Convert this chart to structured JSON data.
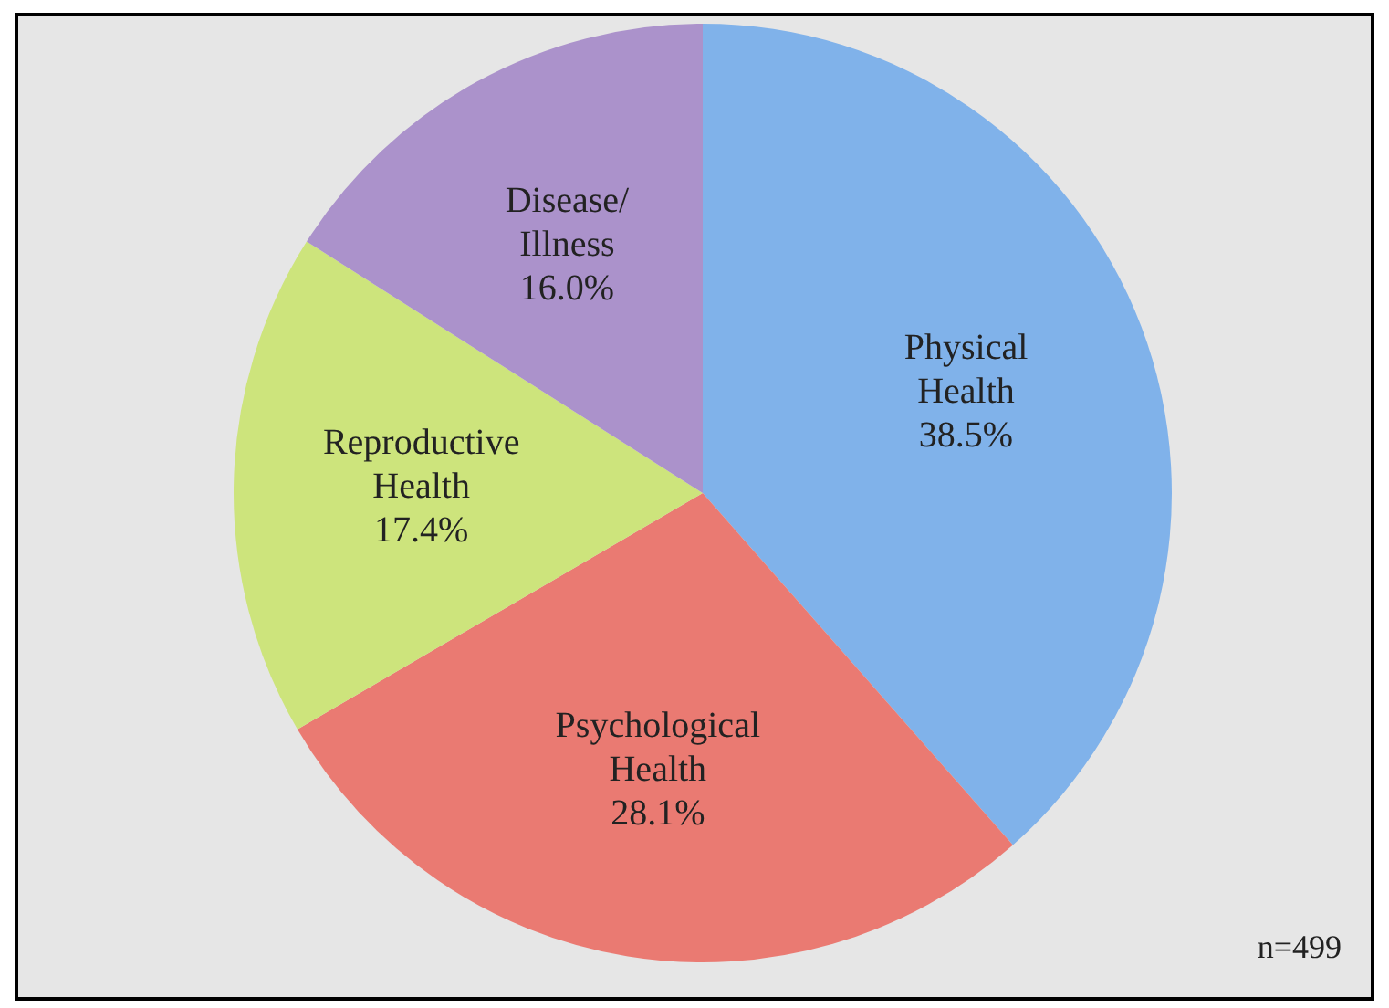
{
  "chart_data": {
    "type": "pie",
    "categories": [
      "Physical Health",
      "Psychological Health",
      "Reproductive Health",
      "Disease/ Illness"
    ],
    "values": [
      38.5,
      28.1,
      17.4,
      16.0
    ],
    "colors": [
      "#80b2ea",
      "#ea7a72",
      "#cde47c",
      "#ab92cb"
    ],
    "value_labels": [
      "38.5%",
      "28.1%",
      "17.4%",
      "16.0%"
    ],
    "legend": false,
    "annotations": [
      "n=499"
    ]
  }
}
